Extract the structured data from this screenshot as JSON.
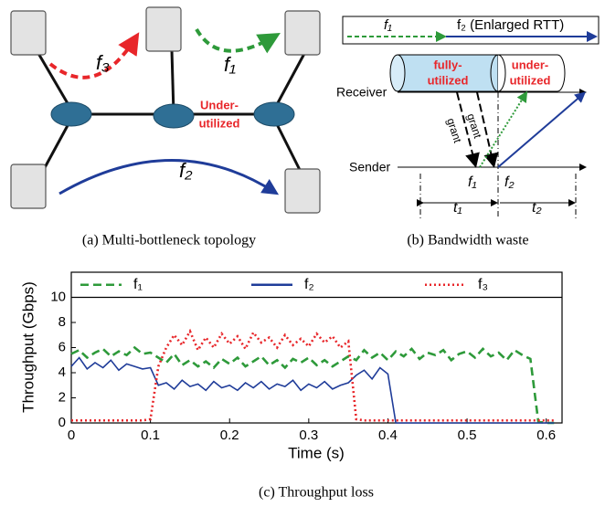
{
  "topology": {
    "flow_f3": "f₃",
    "flow_f1": "f₁",
    "flow_f2": "f₂",
    "under_1": "Under-",
    "under_2": "utilized",
    "caption": "(a) Multi-bottleneck topology"
  },
  "waste": {
    "legend_f1": "f₁",
    "legend_f2": "f₂ (Enlarged RTT)",
    "fully_1": "fully-",
    "fully_2": "utilized",
    "under_1": "under-",
    "under_2": "utilized",
    "receiver": "Receiver",
    "sender": "Sender",
    "grant_1": "grant",
    "grant_2": "grant",
    "f1": "f₁",
    "f2": "f₂",
    "t1": "t₁",
    "t2": "t₂",
    "caption": "(b) Bandwidth waste"
  },
  "chart_data": {
    "type": "line",
    "caption": "(c) Throughput loss",
    "xlabel": "Time (s)",
    "ylabel": "Throughput (Gbps)",
    "xlim": [
      0,
      0.62
    ],
    "ylim": [
      0,
      12
    ],
    "xticks": [
      0,
      0.1,
      0.2,
      0.3,
      0.4,
      0.5,
      0.6
    ],
    "yticks": [
      0,
      2,
      4,
      6,
      8,
      10
    ],
    "x": [
      0,
      0.01,
      0.02,
      0.03,
      0.04,
      0.05,
      0.06,
      0.07,
      0.08,
      0.09,
      0.1,
      0.11,
      0.12,
      0.13,
      0.14,
      0.15,
      0.16,
      0.17,
      0.18,
      0.19,
      0.2,
      0.21,
      0.22,
      0.23,
      0.24,
      0.25,
      0.26,
      0.27,
      0.28,
      0.29,
      0.3,
      0.31,
      0.32,
      0.33,
      0.34,
      0.35,
      0.36,
      0.37,
      0.38,
      0.39,
      0.4,
      0.41,
      0.42,
      0.43,
      0.44,
      0.45,
      0.46,
      0.47,
      0.48,
      0.49,
      0.5,
      0.51,
      0.52,
      0.53,
      0.54,
      0.55,
      0.56,
      0.57,
      0.58,
      0.59,
      0.6,
      0.61
    ],
    "series": [
      {
        "name": "f₁",
        "color": "#2e9a3a",
        "dash": "dashed",
        "values": [
          5.5,
          5.8,
          5.2,
          5.6,
          5.9,
          5.3,
          5.7,
          5.4,
          6.0,
          5.5,
          5.6,
          5.2,
          4.8,
          5.5,
          4.6,
          5.0,
          4.5,
          4.9,
          4.4,
          5.1,
          4.7,
          5.2,
          4.5,
          4.9,
          5.3,
          4.6,
          5.0,
          4.4,
          5.1,
          4.8,
          5.2,
          4.6,
          5.0,
          4.5,
          4.9,
          5.3,
          5.0,
          5.8,
          5.2,
          5.6,
          5.0,
          5.7,
          5.3,
          5.9,
          5.1,
          5.6,
          5.4,
          5.8,
          5.0,
          5.5,
          5.7,
          5.2,
          5.9,
          5.3,
          5.6,
          5.0,
          5.8,
          5.4,
          5.1,
          0.1,
          0,
          0
        ]
      },
      {
        "name": "f₂",
        "color": "#1f3c99",
        "dash": "solid",
        "values": [
          4.5,
          5.2,
          4.3,
          4.8,
          4.4,
          5.0,
          4.2,
          4.7,
          4.5,
          4.3,
          4.4,
          3.0,
          3.2,
          2.7,
          3.4,
          2.9,
          3.1,
          2.6,
          3.3,
          2.8,
          3.0,
          2.6,
          3.2,
          2.8,
          3.3,
          2.7,
          3.1,
          2.9,
          3.4,
          2.6,
          3.1,
          2.8,
          3.3,
          2.7,
          3.0,
          3.2,
          3.8,
          4.2,
          3.5,
          4.4,
          3.9,
          0,
          0,
          0,
          0,
          0,
          0,
          0,
          0,
          0,
          0,
          0,
          0,
          0,
          0,
          0,
          0,
          0,
          0,
          0,
          0,
          0
        ]
      },
      {
        "name": "f₃",
        "color": "#e8262a",
        "dash": "dotted",
        "values": [
          0.2,
          0.2,
          0.2,
          0.2,
          0.2,
          0.2,
          0.2,
          0.2,
          0.2,
          0.2,
          0.3,
          4.5,
          6.0,
          7.0,
          6.2,
          7.3,
          5.8,
          6.8,
          6.0,
          7.1,
          6.3,
          6.9,
          5.9,
          7.2,
          6.4,
          6.8,
          6.0,
          7.0,
          6.2,
          6.7,
          6.1,
          7.1,
          6.4,
          6.9,
          6.0,
          6.5,
          0.3,
          0.2,
          0.2,
          0.2,
          0.2,
          0.2,
          0.2,
          0.2,
          0.2,
          0.2,
          0.2,
          0.2,
          0.2,
          0.2,
          0.2,
          0.2,
          0.2,
          0.2,
          0.2,
          0.2,
          0.2,
          0.2,
          0.2,
          0.2,
          0.2,
          0.2
        ]
      }
    ]
  }
}
